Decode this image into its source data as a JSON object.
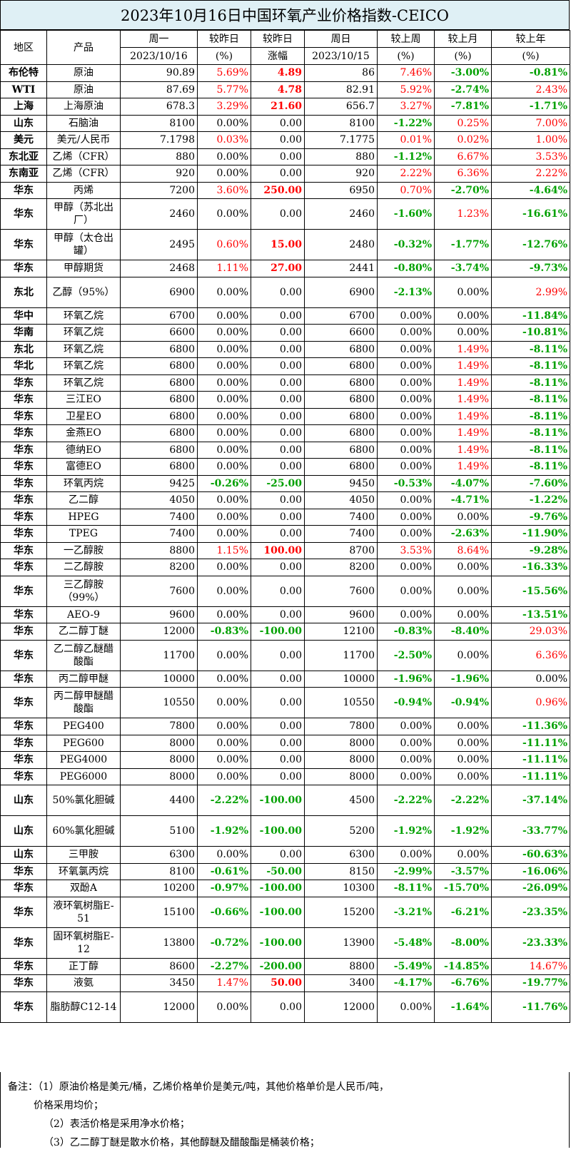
{
  "title": "2023年10月16日中国环氧产业价格指数-CEICO",
  "header": {
    "region": "地区",
    "product": "产品",
    "monday": "周一",
    "monday_date": "2023/10/16",
    "vs_yesterday": "较昨日",
    "vs_yesterday_unit": "(%)",
    "vs_yesterday2": "较昨日",
    "vs_yesterday2_unit": "涨幅",
    "sunday": "周日",
    "sunday_date": "2023/10/15",
    "vs_week": "较上周",
    "vs_week_unit": "(%)",
    "vs_month": "较上月",
    "vs_month_unit": "(%)",
    "vs_year": "较上年",
    "vs_year_unit": "(%)"
  },
  "rows": [
    {
      "region": "布伦特",
      "product": "原油",
      "mon": "90.89",
      "dpct": "5.69%",
      "dabs": "4.89",
      "sun": "86",
      "wk": "7.46%",
      "mo": "-3.00%",
      "yr": "-0.81%"
    },
    {
      "region": "WTI",
      "product": "原油",
      "mon": "87.69",
      "dpct": "5.77%",
      "dabs": "4.78",
      "sun": "82.91",
      "wk": "5.92%",
      "mo": "-2.74%",
      "yr": "2.43%"
    },
    {
      "region": "上海",
      "product": "上海原油",
      "mon": "678.3",
      "dpct": "3.29%",
      "dabs": "21.60",
      "sun": "656.7",
      "wk": "3.27%",
      "mo": "-7.81%",
      "yr": "-1.71%"
    },
    {
      "region": "山东",
      "product": "石脑油",
      "mon": "8100",
      "dpct": "0.00%",
      "dabs": "0.00",
      "sun": "8100",
      "wk": "-1.22%",
      "mo": "0.25%",
      "yr": "7.00%"
    },
    {
      "region": "美元",
      "product": "美元/人民币",
      "mon": "7.1798",
      "dpct": "0.03%",
      "dabs": "0.00",
      "sun": "7.1775",
      "wk": "0.01%",
      "mo": "0.02%",
      "yr": "1.00%"
    },
    {
      "region": "东北亚",
      "product": "乙烯（CFR）",
      "mon": "880",
      "dpct": "0.00%",
      "dabs": "0.00",
      "sun": "880",
      "wk": "-1.12%",
      "mo": "6.67%",
      "yr": "3.53%"
    },
    {
      "region": "东南亚",
      "product": "乙烯（CFR）",
      "mon": "920",
      "dpct": "0.00%",
      "dabs": "0.00",
      "sun": "920",
      "wk": "2.22%",
      "mo": "6.36%",
      "yr": "2.22%"
    },
    {
      "region": "华东",
      "product": "丙烯",
      "mon": "7200",
      "dpct": "3.60%",
      "dabs": "250.00",
      "sun": "6950",
      "wk": "0.70%",
      "mo": "-2.70%",
      "yr": "-4.64%"
    },
    {
      "region": "华东",
      "product": "甲醇（苏北出厂）",
      "mon": "2460",
      "dpct": "0.00%",
      "dabs": "0.00",
      "sun": "2460",
      "wk": "-1.60%",
      "mo": "1.23%",
      "yr": "-16.61%",
      "tall": true
    },
    {
      "region": "华东",
      "product": "甲醇（太仓出罐）",
      "mon": "2495",
      "dpct": "0.60%",
      "dabs": "15.00",
      "sun": "2480",
      "wk": "-0.32%",
      "mo": "-1.77%",
      "yr": "-12.76%",
      "tall": true
    },
    {
      "region": "华东",
      "product": "甲醇期货",
      "mon": "2468",
      "dpct": "1.11%",
      "dabs": "27.00",
      "sun": "2441",
      "wk": "-0.80%",
      "mo": "-3.74%",
      "yr": "-9.73%"
    },
    {
      "region": "东北",
      "product": "乙醇（95%）",
      "mon": "6900",
      "dpct": "0.00%",
      "dabs": "0.00",
      "sun": "6900",
      "wk": "-2.13%",
      "mo": "0.00%",
      "yr": "2.99%",
      "tall": true
    },
    {
      "region": "华中",
      "product": "环氧乙烷",
      "mon": "6700",
      "dpct": "0.00%",
      "dabs": "0.00",
      "sun": "6700",
      "wk": "0.00%",
      "mo": "0.00%",
      "yr": "-11.84%"
    },
    {
      "region": "华南",
      "product": "环氧乙烷",
      "mon": "6600",
      "dpct": "0.00%",
      "dabs": "0.00",
      "sun": "6600",
      "wk": "0.00%",
      "mo": "0.00%",
      "yr": "-10.81%"
    },
    {
      "region": "东北",
      "product": "环氧乙烷",
      "mon": "6800",
      "dpct": "0.00%",
      "dabs": "0.00",
      "sun": "6800",
      "wk": "0.00%",
      "mo": "1.49%",
      "yr": "-8.11%"
    },
    {
      "region": "华北",
      "product": "环氧乙烷",
      "mon": "6800",
      "dpct": "0.00%",
      "dabs": "0.00",
      "sun": "6800",
      "wk": "0.00%",
      "mo": "1.49%",
      "yr": "-8.11%"
    },
    {
      "region": "华东",
      "product": "环氧乙烷",
      "mon": "6800",
      "dpct": "0.00%",
      "dabs": "0.00",
      "sun": "6800",
      "wk": "0.00%",
      "mo": "1.49%",
      "yr": "-8.11%"
    },
    {
      "region": "华东",
      "product": "三江EO",
      "mon": "6800",
      "dpct": "0.00%",
      "dabs": "0.00",
      "sun": "6800",
      "wk": "0.00%",
      "mo": "1.49%",
      "yr": "-8.11%"
    },
    {
      "region": "华东",
      "product": "卫星EO",
      "mon": "6800",
      "dpct": "0.00%",
      "dabs": "0.00",
      "sun": "6800",
      "wk": "0.00%",
      "mo": "1.49%",
      "yr": "-8.11%"
    },
    {
      "region": "华东",
      "product": "金燕EO",
      "mon": "6800",
      "dpct": "0.00%",
      "dabs": "0.00",
      "sun": "6800",
      "wk": "0.00%",
      "mo": "1.49%",
      "yr": "-8.11%"
    },
    {
      "region": "华东",
      "product": "德纳EO",
      "mon": "6800",
      "dpct": "0.00%",
      "dabs": "0.00",
      "sun": "6800",
      "wk": "0.00%",
      "mo": "1.49%",
      "yr": "-8.11%"
    },
    {
      "region": "华东",
      "product": "富德EO",
      "mon": "6800",
      "dpct": "0.00%",
      "dabs": "0.00",
      "sun": "6800",
      "wk": "0.00%",
      "mo": "1.49%",
      "yr": "-8.11%"
    },
    {
      "region": "华东",
      "product": "环氧丙烷",
      "mon": "9425",
      "dpct": "-0.26%",
      "dabs": "-25.00",
      "sun": "9450",
      "wk": "-0.53%",
      "mo": "-4.07%",
      "yr": "-7.60%"
    },
    {
      "region": "华东",
      "product": "乙二醇",
      "mon": "4050",
      "dpct": "0.00%",
      "dabs": "0.00",
      "sun": "4050",
      "wk": "0.00%",
      "mo": "-4.71%",
      "yr": "-1.22%"
    },
    {
      "region": "华东",
      "product": "HPEG",
      "mon": "7400",
      "dpct": "0.00%",
      "dabs": "0.00",
      "sun": "7400",
      "wk": "0.00%",
      "mo": "0.00%",
      "yr": "-9.76%"
    },
    {
      "region": "华东",
      "product": "TPEG",
      "mon": "7400",
      "dpct": "0.00%",
      "dabs": "0.00",
      "sun": "7400",
      "wk": "0.00%",
      "mo": "-2.63%",
      "yr": "-11.90%"
    },
    {
      "region": "华东",
      "product": "一乙醇胺",
      "mon": "8800",
      "dpct": "1.15%",
      "dabs": "100.00",
      "sun": "8700",
      "wk": "3.53%",
      "mo": "8.64%",
      "yr": "-9.28%"
    },
    {
      "region": "华东",
      "product": "二乙醇胺",
      "mon": "8200",
      "dpct": "0.00%",
      "dabs": "0.00",
      "sun": "8200",
      "wk": "0.00%",
      "mo": "0.00%",
      "yr": "-16.33%"
    },
    {
      "region": "华东",
      "product": "三乙醇胺（99%）",
      "mon": "7600",
      "dpct": "0.00%",
      "dabs": "0.00",
      "sun": "7600",
      "wk": "0.00%",
      "mo": "0.00%",
      "yr": "-15.56%",
      "tall": true
    },
    {
      "region": "华东",
      "product": "AEO-9",
      "mon": "9600",
      "dpct": "0.00%",
      "dabs": "0.00",
      "sun": "9600",
      "wk": "0.00%",
      "mo": "0.00%",
      "yr": "-13.51%"
    },
    {
      "region": "华东",
      "product": "乙二醇丁醚",
      "mon": "12000",
      "dpct": "-0.83%",
      "dabs": "-100.00",
      "sun": "12100",
      "wk": "-0.83%",
      "mo": "-8.40%",
      "yr": "29.03%"
    },
    {
      "region": "华东",
      "product": "乙二醇乙醚醋酸酯",
      "mon": "11700",
      "dpct": "0.00%",
      "dabs": "0.00",
      "sun": "11700",
      "wk": "-2.50%",
      "mo": "0.00%",
      "yr": "6.36%",
      "tall": true
    },
    {
      "region": "华东",
      "product": "丙二醇甲醚",
      "mon": "10000",
      "dpct": "0.00%",
      "dabs": "0.00",
      "sun": "10000",
      "wk": "-1.96%",
      "mo": "-1.96%",
      "yr": "0.00%"
    },
    {
      "region": "华东",
      "product": "丙二醇甲醚醋酸酯",
      "mon": "10550",
      "dpct": "0.00%",
      "dabs": "0.00",
      "sun": "10550",
      "wk": "-0.94%",
      "mo": "-0.94%",
      "yr": "0.96%",
      "tall": true
    },
    {
      "region": "华东",
      "product": "PEG400",
      "mon": "7800",
      "dpct": "0.00%",
      "dabs": "0.00",
      "sun": "7800",
      "wk": "0.00%",
      "mo": "0.00%",
      "yr": "-11.36%"
    },
    {
      "region": "华东",
      "product": "PEG600",
      "mon": "8000",
      "dpct": "0.00%",
      "dabs": "0.00",
      "sun": "8000",
      "wk": "0.00%",
      "mo": "0.00%",
      "yr": "-11.11%"
    },
    {
      "region": "华东",
      "product": "PEG4000",
      "mon": "8000",
      "dpct": "0.00%",
      "dabs": "0.00",
      "sun": "8000",
      "wk": "0.00%",
      "mo": "0.00%",
      "yr": "-11.11%"
    },
    {
      "region": "华东",
      "product": "PEG6000",
      "mon": "8000",
      "dpct": "0.00%",
      "dabs": "0.00",
      "sun": "8000",
      "wk": "0.00%",
      "mo": "0.00%",
      "yr": "-11.11%"
    },
    {
      "region": "山东",
      "product": "50%氯化胆碱",
      "mon": "4400",
      "dpct": "-2.22%",
      "dabs": "-100.00",
      "sun": "4500",
      "wk": "-2.22%",
      "mo": "-2.22%",
      "yr": "-37.14%",
      "tall": true
    },
    {
      "region": "山东",
      "product": "60%氯化胆碱",
      "mon": "5100",
      "dpct": "-1.92%",
      "dabs": "-100.00",
      "sun": "5200",
      "wk": "-1.92%",
      "mo": "-1.92%",
      "yr": "-33.77%",
      "tall": true
    },
    {
      "region": "山东",
      "product": "三甲胺",
      "mon": "6300",
      "dpct": "0.00%",
      "dabs": "0.00",
      "sun": "6300",
      "wk": "0.00%",
      "mo": "0.00%",
      "yr": "-60.63%"
    },
    {
      "region": "华东",
      "product": "环氧氯丙烷",
      "mon": "8100",
      "dpct": "-0.61%",
      "dabs": "-50.00",
      "sun": "8150",
      "wk": "-2.99%",
      "mo": "-3.57%",
      "yr": "-16.06%"
    },
    {
      "region": "华东",
      "product": "双酚A",
      "mon": "10200",
      "dpct": "-0.97%",
      "dabs": "-100.00",
      "sun": "10300",
      "wk": "-8.11%",
      "mo": "-15.70%",
      "yr": "-26.09%"
    },
    {
      "region": "华东",
      "product": "液环氧树脂E-51",
      "mon": "15100",
      "dpct": "-0.66%",
      "dabs": "-100.00",
      "sun": "15200",
      "wk": "-3.21%",
      "mo": "-6.21%",
      "yr": "-23.35%",
      "tall": true
    },
    {
      "region": "华东",
      "product": "固环氧树脂E-12",
      "mon": "13800",
      "dpct": "-0.72%",
      "dabs": "-100.00",
      "sun": "13900",
      "wk": "-5.48%",
      "mo": "-8.00%",
      "yr": "-23.33%",
      "tall": true
    },
    {
      "region": "华东",
      "product": "正丁醇",
      "mon": "8600",
      "dpct": "-2.27%",
      "dabs": "-200.00",
      "sun": "8800",
      "wk": "-5.49%",
      "mo": "-14.85%",
      "yr": "14.67%"
    },
    {
      "region": "华东",
      "product": "液氨",
      "mon": "3450",
      "dpct": "1.47%",
      "dabs": "50.00",
      "sun": "3400",
      "wk": "-4.17%",
      "mo": "-6.76%",
      "yr": "-19.77%"
    },
    {
      "region": "华东",
      "product": "脂肪醇C12-14",
      "mon": "12000",
      "dpct": "0.00%",
      "dabs": "0.00",
      "sun": "12000",
      "wk": "0.00%",
      "mo": "-1.64%",
      "yr": "-11.76%",
      "tall": true
    }
  ],
  "notes": {
    "line1": "备注：（1）原油价格是美元/桶，乙烯价格单价是美元/吨，其他价格单价是人民币/吨，",
    "line2": "价格采用均价；",
    "line3": "（2）表活价格是采用净水价格；",
    "line4": "（3）乙二醇丁醚是散水价格，其他醇醚及醋酸酯是桶装价格；"
  },
  "colors": {
    "up": "#ff0000",
    "down": "#00a000",
    "title_bg": "#dff0f5"
  }
}
